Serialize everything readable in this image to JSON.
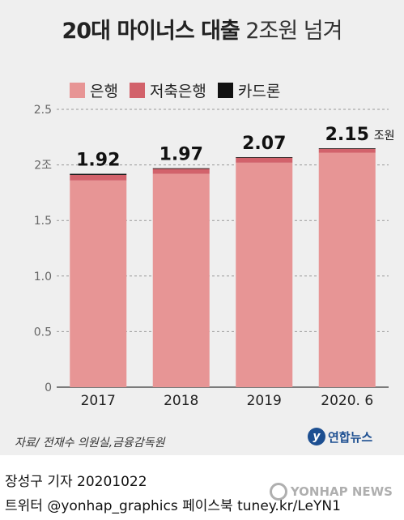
{
  "header": {
    "title_bold": "20대 마이너스 대출",
    "title_light": "2조원 넘겨"
  },
  "legend": [
    {
      "label": "은행",
      "color": "#e79595"
    },
    {
      "label": "저축은행",
      "color": "#d2626b"
    },
    {
      "label": "카드론",
      "color": "#111111"
    }
  ],
  "chart_data": {
    "type": "bar",
    "stacked": true,
    "categories": [
      "2017",
      "2018",
      "2019",
      "2020. 6"
    ],
    "totals": [
      "1.92",
      "1.97",
      "2.07",
      "2.15"
    ],
    "total_unit": "조원",
    "series": [
      {
        "name": "은행",
        "color": "#e79595",
        "values": [
          1.86,
          1.92,
          2.02,
          2.11
        ]
      },
      {
        "name": "저축은행",
        "color": "#d2626b",
        "values": [
          0.05,
          0.045,
          0.045,
          0.035
        ]
      },
      {
        "name": "카드론",
        "color": "#111111",
        "values": [
          0.01,
          0.005,
          0.005,
          0.005
        ]
      }
    ],
    "y_ticks": [
      {
        "value": 0,
        "label": "0"
      },
      {
        "value": 0.5,
        "label": "0.5"
      },
      {
        "value": 1.0,
        "label": "1.0"
      },
      {
        "value": 1.5,
        "label": "1.5"
      },
      {
        "value": 2.0,
        "label": "2조"
      },
      {
        "value": 2.5,
        "label": "2.5"
      }
    ],
    "ylim": [
      0,
      2.5
    ],
    "grid": "dashed horizontal"
  },
  "footer": {
    "source": "자료/ 전재수 의원실,금융감독원",
    "logo": "연합뉴스",
    "credit_line1": "장성구 기자  20201022",
    "credit_line2": "트위터 @yonhap_graphics  페이스북 tuney.kr/LeYN1",
    "watermark": "YONHAP NEWS"
  }
}
